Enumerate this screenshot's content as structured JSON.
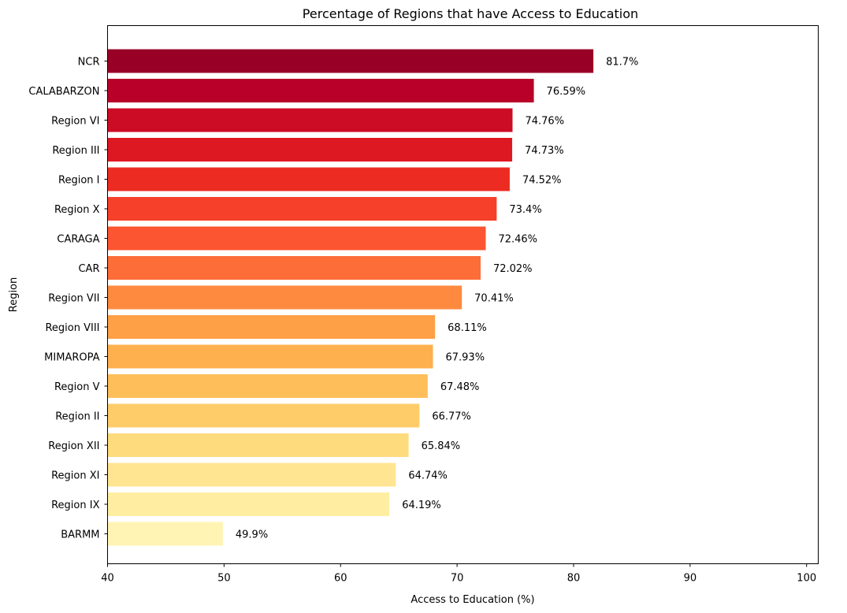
{
  "chart_data": {
    "type": "bar",
    "orientation": "horizontal",
    "title": "Percentage of Regions that have Access to Education",
    "xlabel": "Access to Education (%)",
    "ylabel": "Region",
    "xlim": [
      40,
      101
    ],
    "xticks": [
      "40",
      "50",
      "60",
      "70",
      "80",
      "90",
      "100"
    ],
    "categories": [
      "NCR",
      "CALABARZON",
      "Region VI",
      "Region III",
      "Region I",
      "Region X",
      "CARAGA",
      "CAR",
      "Region VII",
      "Region VIII",
      "MIMAROPA",
      "Region V",
      "Region II",
      "Region XII",
      "Region XI",
      "Region IX",
      "BARMM"
    ],
    "values": [
      81.7,
      76.59,
      74.76,
      74.73,
      74.52,
      73.4,
      72.46,
      72.02,
      70.41,
      68.11,
      67.93,
      67.48,
      66.77,
      65.84,
      64.74,
      64.19,
      49.9
    ],
    "data_labels": [
      "81.7%",
      "76.59%",
      "74.76%",
      "74.73%",
      "74.52%",
      "73.4%",
      "72.46%",
      "72.02%",
      "70.41%",
      "68.11%",
      "67.93%",
      "67.48%",
      "66.77%",
      "65.84%",
      "64.74%",
      "64.19%",
      "49.9%"
    ],
    "colors": [
      "#990026",
      "#b80028",
      "#cc0b24",
      "#de1822",
      "#ec2c23",
      "#f6402a",
      "#fc5531",
      "#fd6d37",
      "#fd8a3f",
      "#fea046",
      "#feb04e",
      "#febf5a",
      "#fecd6a",
      "#fedb7d",
      "#ffe591",
      "#ffeea2",
      "#fff4b4"
    ],
    "grid": false,
    "legend": "none"
  }
}
